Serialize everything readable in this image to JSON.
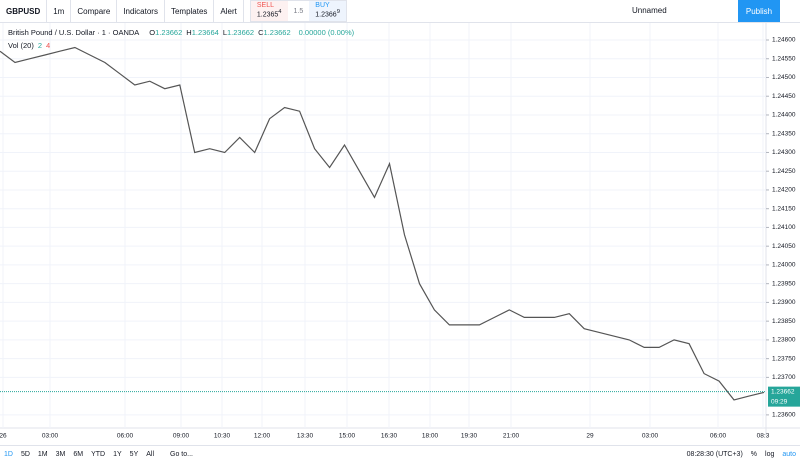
{
  "toolbar": {
    "symbol": "GBPUSD",
    "interval": "1m",
    "buttons": [
      "Compare",
      "Indicators",
      "Templates",
      "Alert"
    ],
    "sell": {
      "label": "SELL",
      "price": "1.2365",
      "pip": "4"
    },
    "spread": "1.5",
    "buy": {
      "label": "BUY",
      "price": "1.2366",
      "pip": "9"
    },
    "layout": "Unnamed",
    "publish": "Publish"
  },
  "legend": {
    "name": "British Pound / U.S. Dollar · 1 · OANDA",
    "ohlc": [
      {
        "key": "O",
        "value": "1.23662"
      },
      {
        "key": "H",
        "value": "1.23664"
      },
      {
        "key": "L",
        "value": "1.23662"
      },
      {
        "key": "C",
        "value": "1.23662"
      }
    ],
    "change": "0.00000 (0.00%)",
    "volume": "Vol (20)",
    "volume_values": [
      "2",
      "4"
    ]
  },
  "chart_data": {
    "type": "line",
    "color": "#555555",
    "grid": true,
    "values": [
      1.2457,
      1.2454,
      1.2455,
      1.2456,
      1.2457,
      1.2458,
      1.2456,
      1.2454,
      1.2451,
      1.2448,
      1.2449,
      1.2447,
      1.2448,
      1.243,
      1.2431,
      1.243,
      1.2434,
      1.243,
      1.2439,
      1.2442,
      1.2441,
      1.2431,
      1.2426,
      1.2432,
      1.2425,
      1.2418,
      1.2427,
      1.2408,
      1.2395,
      1.2388,
      1.2384,
      1.2384,
      1.2384,
      1.2386,
      1.2388,
      1.2386,
      1.2386,
      1.2386,
      1.2387,
      1.2383,
      1.2382,
      1.2381,
      1.238,
      1.2378,
      1.2378,
      1.238,
      1.2379,
      1.2371,
      1.2369,
      1.2364,
      1.2365,
      1.2366
    ],
    "ylim": [
      1.23565,
      1.24648
    ],
    "yticks": [
      {
        "value": 1.246,
        "label": "1.24600"
      },
      {
        "value": 1.2455,
        "label": "1.24550"
      },
      {
        "value": 1.245,
        "label": "1.24500"
      },
      {
        "value": 1.2445,
        "label": "1.24450"
      },
      {
        "value": 1.244,
        "label": "1.24400"
      },
      {
        "value": 1.2435,
        "label": "1.24350"
      },
      {
        "value": 1.243,
        "label": "1.24300"
      },
      {
        "value": 1.2425,
        "label": "1.24250"
      },
      {
        "value": 1.242,
        "label": "1.24200"
      },
      {
        "value": 1.2415,
        "label": "1.24150"
      },
      {
        "value": 1.241,
        "label": "1.24100"
      },
      {
        "value": 1.2405,
        "label": "1.24050"
      },
      {
        "value": 1.24,
        "label": "1.24000"
      },
      {
        "value": 1.2395,
        "label": "1.23950"
      },
      {
        "value": 1.239,
        "label": "1.23900"
      },
      {
        "value": 1.2385,
        "label": "1.23850"
      },
      {
        "value": 1.238,
        "label": "1.23800"
      },
      {
        "value": 1.2375,
        "label": "1.23750"
      },
      {
        "value": 1.237,
        "label": "1.23700"
      },
      {
        "value": 1.236,
        "label": "1.23600"
      }
    ],
    "x_labels": [
      "26",
      "03:00",
      "06:00",
      "09:00",
      "10:30",
      "12:00",
      "13:30",
      "15:00",
      "16:30",
      "18:00",
      "19:30",
      "21:00",
      "29",
      "03:00",
      "06:00",
      "08:3"
    ],
    "last_price": {
      "value": 1.23662,
      "label": "1.23662"
    },
    "countdown": "09:29"
  },
  "bottom": {
    "ranges": [
      "1D",
      "5D",
      "1M",
      "3M",
      "6M",
      "YTD",
      "1Y",
      "5Y",
      "All"
    ],
    "goto": "Go to...",
    "clock": "08:28:30 (UTC+3)",
    "options": [
      "%",
      "log",
      "auto"
    ]
  }
}
